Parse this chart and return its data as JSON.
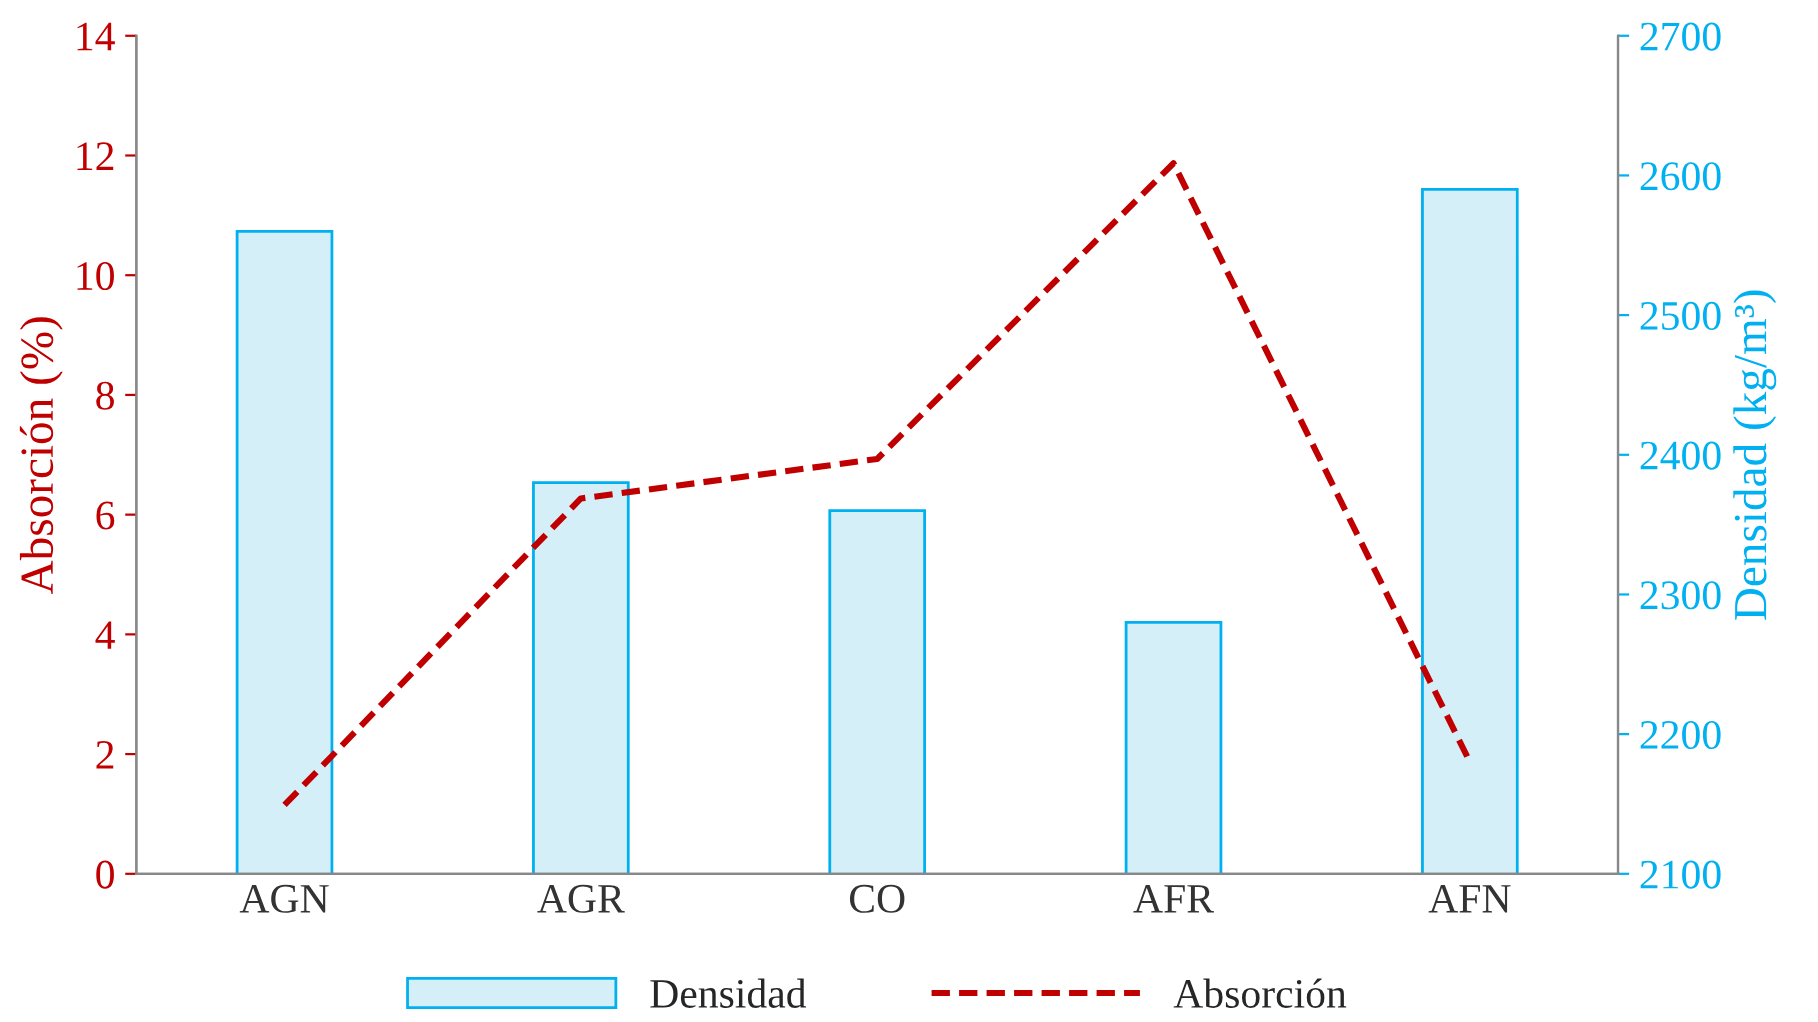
{
  "chart_data": {
    "type": "bar",
    "categories": [
      "AGN",
      "AGR",
      "CO",
      "AFR",
      "AFN"
    ],
    "ylabel": "Absorción (%)",
    "y2label": "Densidad (kg/m³)",
    "ylim": [
      0,
      14
    ],
    "yticks": [
      0,
      2,
      4,
      6,
      8,
      10,
      12,
      14
    ],
    "y2lim": [
      2100,
      2700
    ],
    "y2ticks": [
      2100,
      2200,
      2300,
      2400,
      2500,
      2600,
      2700
    ],
    "legend": "bottom",
    "series": [
      {
        "name": "Densidad",
        "axis": "y2",
        "color": "#d5eff9",
        "values": [
          2560,
          2380,
          2360,
          2280,
          2590
        ]
      },
      {
        "name": "Absorción",
        "type": "line",
        "axis": "y",
        "color": "#c00000",
        "line_style": "dashed",
        "values": [
          1.15,
          6.27,
          6.93,
          11.87,
          1.87
        ]
      }
    ]
  }
}
